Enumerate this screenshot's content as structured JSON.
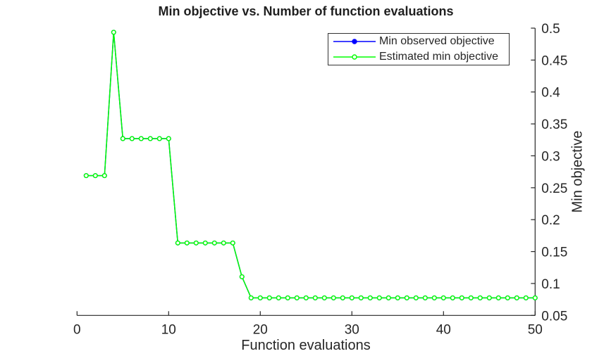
{
  "chart_data": {
    "type": "line",
    "title": "Min objective vs. Number of function evaluations",
    "xlabel": "Function evaluations",
    "ylabel": "Min objective",
    "xlim": [
      0,
      50
    ],
    "ylim": [
      0.05,
      0.5
    ],
    "xticks": [
      0,
      10,
      20,
      30,
      40,
      50
    ],
    "yticks": [
      0.05,
      0.1,
      0.15,
      0.2,
      0.25,
      0.3,
      0.35,
      0.4,
      0.45,
      0.5
    ],
    "y_axis_location": "right",
    "grid": false,
    "axis_color": "#262626",
    "background_color": "#ffffff",
    "legend": {
      "position": "northeast",
      "border_color": "#333333",
      "entries": [
        "Min observed objective",
        "Estimated min objective"
      ]
    },
    "x": [
      1,
      2,
      3,
      4,
      5,
      6,
      7,
      8,
      9,
      10,
      11,
      12,
      13,
      14,
      15,
      16,
      17,
      18,
      19,
      20,
      21,
      22,
      23,
      24,
      25,
      26,
      27,
      28,
      29,
      30,
      31,
      32,
      33,
      34,
      35,
      36,
      37,
      38,
      39,
      40,
      41,
      42,
      43,
      44,
      45,
      46,
      47,
      48,
      49,
      50
    ],
    "series": [
      {
        "name": "Min observed objective",
        "color": "#0000ff",
        "marker": "filled-dot",
        "values": [
          0.269,
          0.269,
          0.269,
          0.4935,
          0.327,
          0.327,
          0.327,
          0.327,
          0.327,
          0.327,
          0.1635,
          0.1635,
          0.1635,
          0.1635,
          0.1635,
          0.1635,
          0.1635,
          0.1105,
          0.0775,
          0.0775,
          0.0775,
          0.0775,
          0.0775,
          0.0775,
          0.0775,
          0.0775,
          0.0775,
          0.0775,
          0.0775,
          0.0775,
          0.0775,
          0.0775,
          0.0775,
          0.0775,
          0.0775,
          0.0775,
          0.0775,
          0.0775,
          0.0775,
          0.0775,
          0.0775,
          0.0775,
          0.0775,
          0.0775,
          0.0775,
          0.0775,
          0.0775,
          0.0775,
          0.0775,
          0.0775
        ]
      },
      {
        "name": "Estimated min objective",
        "color": "#00ff00",
        "marker": "open-circle",
        "values": [
          0.269,
          0.269,
          0.269,
          0.4935,
          0.327,
          0.327,
          0.327,
          0.327,
          0.327,
          0.327,
          0.1635,
          0.1635,
          0.1635,
          0.1635,
          0.1635,
          0.1635,
          0.1635,
          0.1105,
          0.0775,
          0.0775,
          0.0775,
          0.0775,
          0.0775,
          0.0775,
          0.0775,
          0.0775,
          0.0775,
          0.0775,
          0.0775,
          0.0775,
          0.0775,
          0.0775,
          0.0775,
          0.0775,
          0.0775,
          0.0775,
          0.0775,
          0.0775,
          0.0775,
          0.0775,
          0.0775,
          0.0775,
          0.0775,
          0.0775,
          0.0775,
          0.0775,
          0.0775,
          0.0775,
          0.0775,
          0.0775
        ]
      }
    ]
  }
}
